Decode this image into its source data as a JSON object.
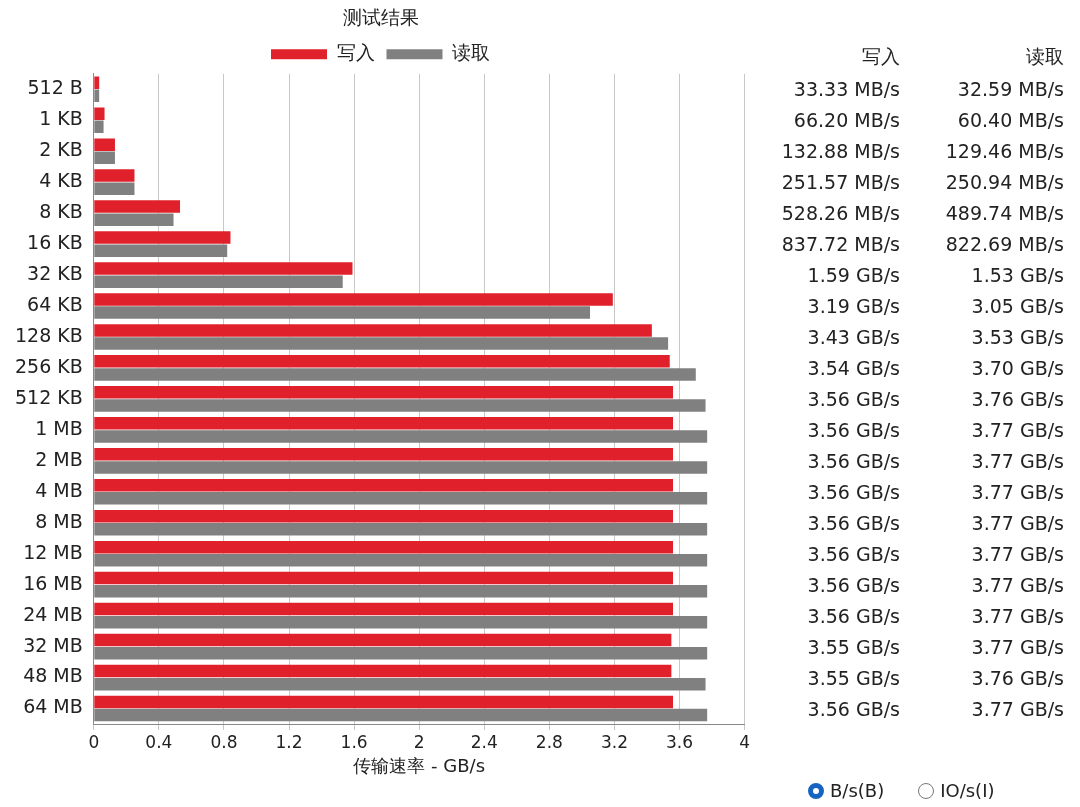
{
  "chart_data": [
    {
      "type": "bar",
      "orientation": "horizontal",
      "title": "测试结果",
      "xlabel": "传输速率 - GB/s",
      "categories": [
        "512 B",
        "1 KB",
        "2 KB",
        "4 KB",
        "8 KB",
        "16 KB",
        "32 KB",
        "64 KB",
        "128 KB",
        "256 KB",
        "512 KB",
        "1 MB",
        "2 MB",
        "4 MB",
        "8 MB",
        "12 MB",
        "16 MB",
        "24 MB",
        "32 MB",
        "48 MB",
        "64 MB"
      ],
      "series": [
        {
          "name": "写入",
          "color": "#e0202a",
          "values": [
            0.033,
            0.066,
            0.13,
            0.25,
            0.53,
            0.84,
            1.59,
            3.19,
            3.43,
            3.54,
            3.56,
            3.56,
            3.56,
            3.56,
            3.56,
            3.56,
            3.56,
            3.56,
            3.55,
            3.55,
            3.56
          ]
        },
        {
          "name": "读取",
          "color": "#808080",
          "values": [
            0.033,
            0.06,
            0.13,
            0.25,
            0.49,
            0.82,
            1.53,
            3.05,
            3.53,
            3.7,
            3.76,
            3.77,
            3.77,
            3.77,
            3.77,
            3.77,
            3.77,
            3.77,
            3.77,
            3.76,
            3.77
          ]
        }
      ],
      "xlim": [
        0,
        4
      ],
      "xticks": [
        0,
        0.4,
        0.8,
        1.2,
        1.6,
        2,
        2.4,
        2.8,
        3.2,
        3.6,
        4
      ],
      "grid": "x",
      "legend": "top",
      "annotations": [
        "B/s(B)",
        "IO/s(I)"
      ]
    },
    {
      "type": "other",
      "annotations": [
        "写入",
        "读取",
        "33.33 MB/s",
        "32.59 MB/s",
        "66.20 MB/s",
        "60.40 MB/s",
        "132.88 MB/s",
        "129.46 MB/s",
        "251.57 MB/s",
        "250.94 MB/s",
        "528.26 MB/s",
        "489.74 MB/s",
        "837.72 MB/s",
        "822.69 MB/s",
        "1.59 GB/s",
        "1.53 GB/s",
        "3.19 GB/s",
        "3.05 GB/s",
        "3.43 GB/s",
        "3.53 GB/s",
        "3.54 GB/s",
        "3.70 GB/s",
        "3.56 GB/s",
        "3.76 GB/s",
        "3.56 GB/s",
        "3.77 GB/s",
        "3.56 GB/s",
        "3.77 GB/s",
        "3.56 GB/s",
        "3.77 GB/s",
        "3.56 GB/s",
        "3.77 GB/s",
        "3.56 GB/s",
        "3.77 GB/s",
        "3.56 GB/s",
        "3.77 GB/s",
        "3.56 GB/s",
        "3.77 GB/s",
        "3.55 GB/s",
        "3.77 GB/s",
        "3.55 GB/s",
        "3.76 GB/s",
        "3.56 GB/s",
        "3.77 GB/s"
      ]
    }
  ]
}
